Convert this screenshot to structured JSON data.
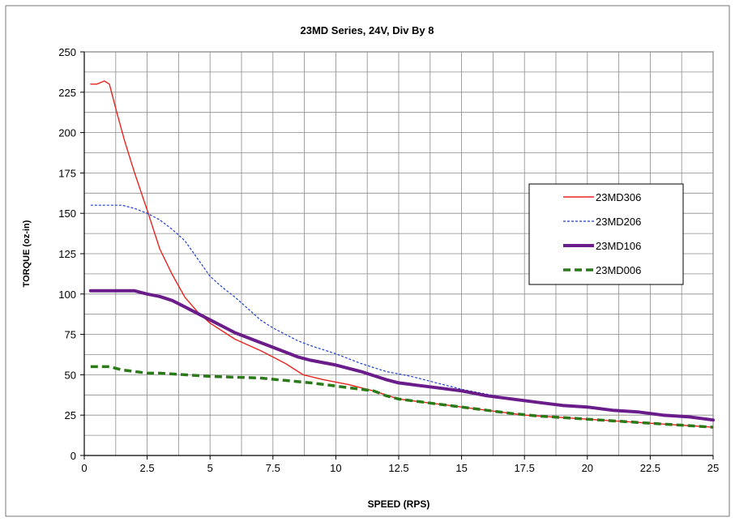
{
  "chart_data": {
    "type": "line",
    "title": "23MD Series,  24V, Div By 8",
    "xlabel": "SPEED (RPS)",
    "ylabel": "TORQUE (oz-in)",
    "xlim": [
      0,
      25
    ],
    "ylim": [
      0,
      250
    ],
    "x_ticks": [
      "0",
      "2.5",
      "5",
      "7.5",
      "10",
      "12.5",
      "15",
      "17.5",
      "20",
      "22.5",
      "25"
    ],
    "y_ticks": [
      "0",
      "25",
      "50",
      "75",
      "100",
      "125",
      "150",
      "175",
      "200",
      "225",
      "250"
    ],
    "grid": true,
    "legend_position": "right",
    "series": [
      {
        "name": "23MD306",
        "color": "#e8231d",
        "style": "solid",
        "points": [
          [
            0.25,
            230
          ],
          [
            0.5,
            230
          ],
          [
            0.8,
            232
          ],
          [
            1.0,
            230
          ],
          [
            1.3,
            212
          ],
          [
            1.6,
            195
          ],
          [
            2.0,
            175
          ],
          [
            2.5,
            152
          ],
          [
            3.0,
            128
          ],
          [
            3.5,
            112
          ],
          [
            4.0,
            98
          ],
          [
            4.5,
            89
          ],
          [
            5.0,
            82
          ],
          [
            6.0,
            72
          ],
          [
            7.0,
            65
          ],
          [
            8.0,
            57
          ],
          [
            8.7,
            50
          ],
          [
            9.5,
            47
          ],
          [
            10.5,
            44
          ],
          [
            11.5,
            40
          ],
          [
            12.5,
            35
          ],
          [
            13.5,
            33
          ],
          [
            14.5,
            31
          ],
          [
            15.5,
            29
          ],
          [
            16.5,
            27
          ],
          [
            17.5,
            25
          ],
          [
            18.5,
            24
          ],
          [
            19.5,
            23
          ],
          [
            20.5,
            22
          ],
          [
            21.5,
            21
          ],
          [
            22.5,
            20
          ],
          [
            23.5,
            19
          ],
          [
            24.5,
            18
          ],
          [
            25.0,
            17.5
          ]
        ]
      },
      {
        "name": "23MD206",
        "color": "#1f3fcf",
        "style": "dotted",
        "points": [
          [
            0.25,
            155
          ],
          [
            1.0,
            155
          ],
          [
            1.5,
            155
          ],
          [
            2.0,
            153
          ],
          [
            2.5,
            150
          ],
          [
            3.0,
            146
          ],
          [
            3.5,
            140
          ],
          [
            4.0,
            133
          ],
          [
            4.5,
            122
          ],
          [
            5.0,
            111
          ],
          [
            5.5,
            104
          ],
          [
            6.0,
            98
          ],
          [
            6.5,
            91
          ],
          [
            7.0,
            84
          ],
          [
            7.5,
            79
          ],
          [
            8.0,
            75
          ],
          [
            8.5,
            71
          ],
          [
            9.0,
            68
          ],
          [
            10.0,
            63
          ],
          [
            11.0,
            57
          ],
          [
            12.0,
            52
          ],
          [
            13.0,
            49
          ],
          [
            14.0,
            45
          ],
          [
            15.0,
            41
          ],
          [
            16.0,
            38
          ],
          [
            17.0,
            35
          ],
          [
            18.0,
            33
          ],
          [
            19.0,
            31
          ],
          [
            20.0,
            30
          ],
          [
            21.0,
            28
          ],
          [
            22.0,
            27
          ],
          [
            23.0,
            25
          ],
          [
            24.0,
            24
          ],
          [
            25.0,
            22
          ]
        ]
      },
      {
        "name": "23MD106",
        "color": "#6a1c8a",
        "style": "thick",
        "points": [
          [
            0.25,
            102
          ],
          [
            1.0,
            102
          ],
          [
            1.5,
            102
          ],
          [
            2.0,
            102
          ],
          [
            2.5,
            100
          ],
          [
            3.0,
            98.5
          ],
          [
            3.5,
            96
          ],
          [
            4.0,
            92
          ],
          [
            4.5,
            88
          ],
          [
            5.0,
            84
          ],
          [
            5.5,
            80
          ],
          [
            6.0,
            76
          ],
          [
            6.5,
            73
          ],
          [
            7.0,
            70
          ],
          [
            7.5,
            67
          ],
          [
            8.0,
            64
          ],
          [
            8.5,
            61
          ],
          [
            9.0,
            59
          ],
          [
            10.0,
            56
          ],
          [
            11.0,
            52
          ],
          [
            12.0,
            47
          ],
          [
            12.5,
            45
          ],
          [
            13.0,
            44
          ],
          [
            14.0,
            42
          ],
          [
            15.0,
            40
          ],
          [
            16.0,
            37
          ],
          [
            17.0,
            35
          ],
          [
            18.0,
            33
          ],
          [
            19.0,
            31
          ],
          [
            20.0,
            30
          ],
          [
            21.0,
            28
          ],
          [
            22.0,
            27
          ],
          [
            23.0,
            25
          ],
          [
            24.0,
            24
          ],
          [
            25.0,
            22
          ]
        ]
      },
      {
        "name": "23MD006",
        "color": "#2a7a18",
        "style": "dashed",
        "points": [
          [
            0.25,
            55
          ],
          [
            1.0,
            55
          ],
          [
            1.5,
            53
          ],
          [
            2.0,
            52
          ],
          [
            2.5,
            51
          ],
          [
            3.0,
            51
          ],
          [
            4.0,
            50
          ],
          [
            5.0,
            49
          ],
          [
            6.0,
            48.5
          ],
          [
            7.0,
            48
          ],
          [
            8.0,
            46.5
          ],
          [
            9.0,
            45
          ],
          [
            10.0,
            43
          ],
          [
            11.0,
            41
          ],
          [
            11.5,
            40
          ],
          [
            12.0,
            37
          ],
          [
            12.5,
            35
          ],
          [
            13.0,
            34
          ],
          [
            14.0,
            32
          ],
          [
            15.0,
            30
          ],
          [
            16.0,
            28
          ],
          [
            17.0,
            26
          ],
          [
            18.0,
            24.5
          ],
          [
            19.0,
            23.5
          ],
          [
            20.0,
            22.5
          ],
          [
            21.0,
            21.5
          ],
          [
            22.0,
            20.5
          ],
          [
            23.0,
            19.5
          ],
          [
            24.0,
            18.5
          ],
          [
            25.0,
            17.5
          ]
        ]
      }
    ]
  }
}
